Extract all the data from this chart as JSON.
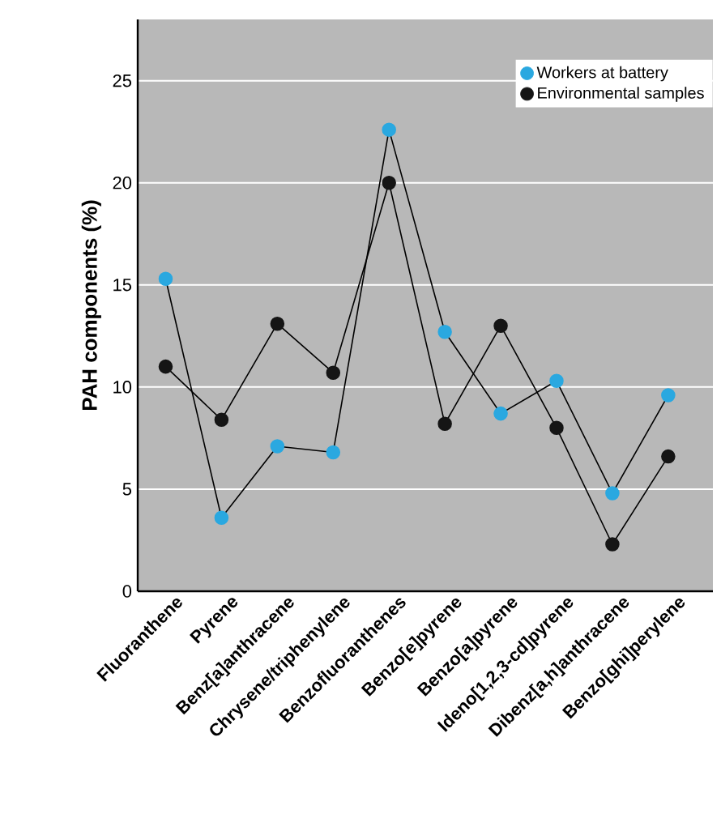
{
  "chart_data": {
    "type": "line",
    "ylabel": "PAH components (%)",
    "categories": [
      "Fluoranthene",
      "Pyrene",
      "Benz[a]anthracene",
      "Chrysene/triphenylene",
      "Benzofluoranthenes",
      "Benzo[e]pyrene",
      "Benzo[a]pyrene",
      "Ideno[1,2,3-cd]pyrene",
      "Dibenz[a,h]anthracene",
      "Benzo[ghi]perylene"
    ],
    "series": [
      {
        "name": "Workers at battery",
        "color": "#2aa8e0",
        "values": [
          15.3,
          3.6,
          7.1,
          6.8,
          22.6,
          12.7,
          8.7,
          10.3,
          4.8,
          9.6
        ]
      },
      {
        "name": "Environmental samples",
        "color": "#151515",
        "values": [
          11.0,
          8.4,
          13.1,
          10.7,
          20.0,
          8.2,
          13.0,
          8.0,
          2.3,
          6.6
        ]
      }
    ],
    "ylim": [
      0,
      28
    ],
    "yticks": [
      0,
      5,
      10,
      15,
      20,
      25
    ],
    "grid": "y",
    "legend": "top right",
    "marker": "circle",
    "line_style": "solid"
  }
}
